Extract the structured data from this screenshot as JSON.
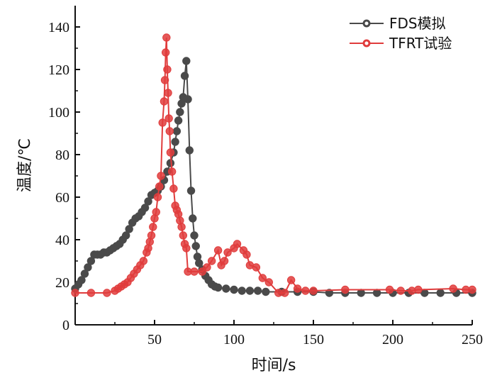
{
  "chart_data": {
    "type": "line",
    "title": "",
    "xlabel": "时间/s",
    "ylabel": "温度/℃",
    "xlim": [
      0,
      250
    ],
    "ylim": [
      0,
      150
    ],
    "xticks": [
      50,
      100,
      150,
      200,
      250
    ],
    "yticks": [
      0,
      20,
      40,
      60,
      80,
      100,
      120,
      140
    ],
    "grid": false,
    "legend_position": "top-right",
    "series": [
      {
        "name": "FDS模拟",
        "color": "#4a4a4a",
        "marker": "circle",
        "points": [
          [
            0,
            17
          ],
          [
            2,
            19
          ],
          [
            4,
            21
          ],
          [
            6,
            24
          ],
          [
            8,
            27
          ],
          [
            10,
            30
          ],
          [
            12,
            33
          ],
          [
            14,
            33
          ],
          [
            16,
            33
          ],
          [
            18,
            34
          ],
          [
            20,
            34
          ],
          [
            22,
            35
          ],
          [
            24,
            36
          ],
          [
            26,
            37
          ],
          [
            28,
            38
          ],
          [
            30,
            40
          ],
          [
            32,
            42
          ],
          [
            34,
            45
          ],
          [
            36,
            48
          ],
          [
            38,
            50
          ],
          [
            40,
            51
          ],
          [
            42,
            53
          ],
          [
            44,
            55
          ],
          [
            46,
            58
          ],
          [
            48,
            61
          ],
          [
            50,
            62
          ],
          [
            52,
            63
          ],
          [
            54,
            65
          ],
          [
            56,
            68
          ],
          [
            58,
            72
          ],
          [
            60,
            76
          ],
          [
            62,
            81
          ],
          [
            63,
            86
          ],
          [
            64,
            91
          ],
          [
            65,
            96
          ],
          [
            66,
            100
          ],
          [
            67,
            104
          ],
          [
            68,
            107
          ],
          [
            69,
            117
          ],
          [
            70,
            124
          ],
          [
            71,
            106
          ],
          [
            72,
            82
          ],
          [
            73,
            63
          ],
          [
            74,
            50
          ],
          [
            75,
            42
          ],
          [
            76,
            37
          ],
          [
            77,
            32
          ],
          [
            78,
            29
          ],
          [
            80,
            26
          ],
          [
            82,
            23
          ],
          [
            84,
            21
          ],
          [
            86,
            19
          ],
          [
            88,
            18
          ],
          [
            90,
            17.5
          ],
          [
            95,
            17
          ],
          [
            100,
            16.5
          ],
          [
            105,
            16
          ],
          [
            110,
            16
          ],
          [
            115,
            16
          ],
          [
            120,
            15.5
          ],
          [
            130,
            15.5
          ],
          [
            140,
            15.5
          ],
          [
            150,
            15.5
          ],
          [
            160,
            15
          ],
          [
            170,
            15
          ],
          [
            180,
            15
          ],
          [
            190,
            15
          ],
          [
            200,
            15
          ],
          [
            210,
            15
          ],
          [
            220,
            15
          ],
          [
            230,
            15
          ],
          [
            240,
            15
          ],
          [
            250,
            15
          ]
        ]
      },
      {
        "name": "TFRT试验",
        "color": "#e03c3c",
        "marker": "circle",
        "points": [
          [
            0,
            15
          ],
          [
            10,
            15
          ],
          [
            20,
            15
          ],
          [
            25,
            16
          ],
          [
            27,
            17
          ],
          [
            29,
            18
          ],
          [
            31,
            19
          ],
          [
            33,
            20
          ],
          [
            35,
            22
          ],
          [
            37,
            24
          ],
          [
            39,
            26
          ],
          [
            41,
            28
          ],
          [
            43,
            30
          ],
          [
            45,
            34
          ],
          [
            46,
            36
          ],
          [
            47,
            39
          ],
          [
            48,
            42
          ],
          [
            49,
            46
          ],
          [
            50,
            50
          ],
          [
            51,
            53
          ],
          [
            52,
            60
          ],
          [
            53,
            65
          ],
          [
            54,
            70
          ],
          [
            55,
            95
          ],
          [
            56,
            105
          ],
          [
            56.5,
            115
          ],
          [
            57,
            128
          ],
          [
            57.5,
            135
          ],
          [
            58,
            120
          ],
          [
            58.5,
            109
          ],
          [
            59,
            97
          ],
          [
            59.5,
            91
          ],
          [
            60,
            81
          ],
          [
            61,
            72
          ],
          [
            62,
            64
          ],
          [
            63,
            56
          ],
          [
            64,
            54
          ],
          [
            65,
            52
          ],
          [
            66,
            49
          ],
          [
            67,
            46
          ],
          [
            68,
            42
          ],
          [
            69,
            38
          ],
          [
            70,
            36
          ],
          [
            71,
            25
          ],
          [
            75,
            25
          ],
          [
            80,
            25
          ],
          [
            83,
            27
          ],
          [
            86,
            30
          ],
          [
            90,
            35
          ],
          [
            92,
            28
          ],
          [
            94,
            30
          ],
          [
            96,
            34
          ],
          [
            100,
            36
          ],
          [
            102,
            38
          ],
          [
            106,
            35
          ],
          [
            108,
            33
          ],
          [
            110,
            28
          ],
          [
            114,
            27
          ],
          [
            118,
            22
          ],
          [
            122,
            20
          ],
          [
            128,
            15
          ],
          [
            132,
            15
          ],
          [
            136,
            21
          ],
          [
            140,
            17
          ],
          [
            145,
            16
          ],
          [
            150,
            16
          ],
          [
            170,
            16.5
          ],
          [
            198,
            16.5
          ],
          [
            205,
            16
          ],
          [
            212,
            16
          ],
          [
            216,
            16.5
          ],
          [
            238,
            17
          ],
          [
            246,
            16.5
          ],
          [
            250,
            16.5
          ]
        ]
      }
    ]
  }
}
